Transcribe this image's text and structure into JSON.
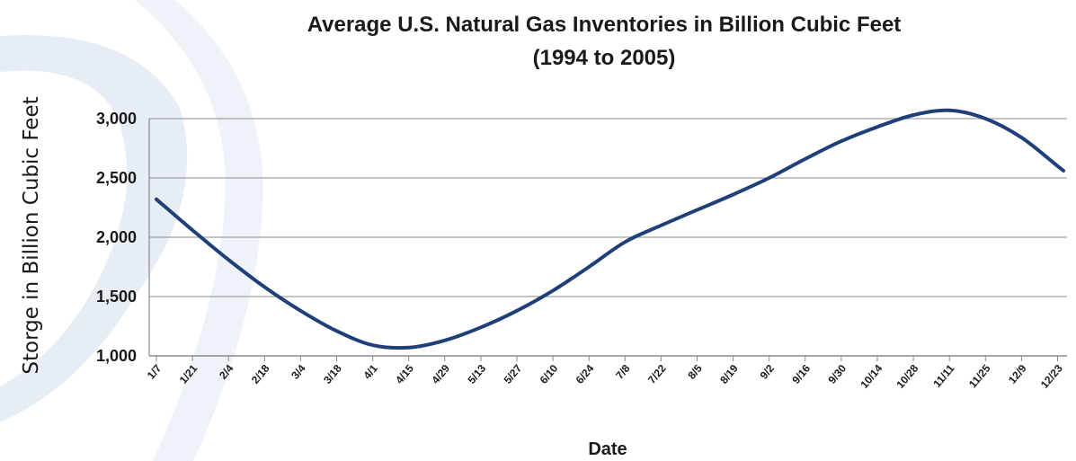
{
  "chart_data": {
    "type": "line",
    "title": "Average U.S. Natural Gas Inventories in Billion Cubic Feet",
    "subtitle": "(1994 to 2005)",
    "xlabel": "Date",
    "ylabel": "Storge in Billion Cubic Feet",
    "ylim": [
      1000,
      3000
    ],
    "yticks": [
      1000,
      1500,
      2000,
      2500,
      3000
    ],
    "ytick_labels": [
      "1,000",
      "1,500",
      "2,000",
      "2,500",
      "3,000"
    ],
    "grid": true,
    "legend": "none",
    "line_color": "#1f3f7a",
    "categories": [
      "1/7",
      "1/21",
      "2/4",
      "2/18",
      "3/4",
      "3/18",
      "4/1",
      "4/15",
      "4/29",
      "5/13",
      "5/27",
      "6/10",
      "6/24",
      "7/8",
      "7/22",
      "8/5",
      "8/19",
      "9/2",
      "9/16",
      "9/30",
      "10/14",
      "10/28",
      "11/11",
      "11/25",
      "12/9",
      "12/23"
    ],
    "series": [
      {
        "values": [
          2320,
          2060,
          1810,
          1580,
          1380,
          1210,
          1090,
          1070,
          1130,
          1240,
          1380,
          1550,
          1750,
          1960,
          2100,
          2230,
          2360,
          2500,
          2660,
          2810,
          2930,
          3030,
          3070,
          3000,
          2840,
          2600
        ]
      }
    ]
  }
}
